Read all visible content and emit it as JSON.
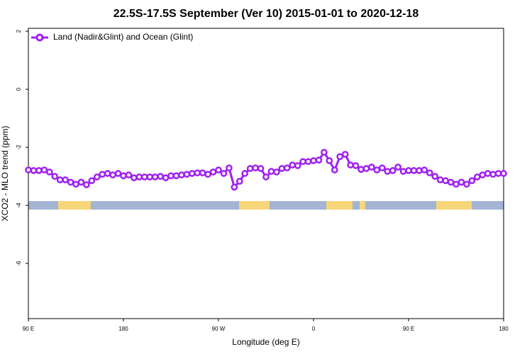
{
  "chart_data": {
    "type": "line",
    "title": "22.5S-17.5S September (Ver 10)   2015-01-01 to 2020-12-18",
    "x_label": "Longitude (deg E)",
    "y_label": "XCO2 - MLO trend (ppm)",
    "x": [
      90,
      95,
      100,
      105,
      110,
      115,
      120,
      125,
      130,
      135,
      140,
      145,
      150,
      155,
      160,
      165,
      170,
      175,
      180,
      185,
      190,
      195,
      200,
      205,
      210,
      215,
      220,
      225,
      230,
      235,
      240,
      245,
      250,
      255,
      260,
      265,
      270,
      275,
      280,
      285,
      290,
      295,
      300,
      305,
      310,
      315,
      320,
      325,
      330,
      335,
      340,
      345,
      350,
      355,
      360,
      365,
      370,
      375,
      380,
      385,
      390,
      395,
      400,
      405,
      410,
      415,
      420,
      425,
      430,
      435,
      440,
      445,
      450,
      455,
      460,
      465,
      470,
      475,
      480,
      485,
      490,
      495,
      500,
      505,
      510,
      515,
      520,
      525,
      530,
      535,
      540
    ],
    "series": [
      {
        "name": "Land (Nadir&Glint) and Ocean (Glint)",
        "color": "#a020f0",
        "values": [
          -2.78,
          -2.8,
          -2.8,
          -2.78,
          -2.85,
          -3.0,
          -3.12,
          -3.12,
          -3.2,
          -3.27,
          -3.2,
          -3.29,
          -3.15,
          -3.02,
          -2.93,
          -2.9,
          -2.95,
          -2.9,
          -2.98,
          -2.95,
          -3.05,
          -3.02,
          -3.02,
          -3.02,
          -3.02,
          -3.0,
          -3.05,
          -2.98,
          -2.98,
          -2.95,
          -2.93,
          -2.9,
          -2.88,
          -2.88,
          -2.93,
          -2.85,
          -2.78,
          -2.9,
          -2.71,
          -3.37,
          -3.17,
          -2.9,
          -2.73,
          -2.71,
          -2.73,
          -3.02,
          -2.83,
          -2.85,
          -2.73,
          -2.71,
          -2.61,
          -2.63,
          -2.49,
          -2.49,
          -2.46,
          -2.44,
          -2.17,
          -2.46,
          -2.78,
          -2.32,
          -2.24,
          -2.61,
          -2.63,
          -2.76,
          -2.73,
          -2.68,
          -2.78,
          -2.71,
          -2.83,
          -2.8,
          -2.68,
          -2.83,
          -2.8,
          -2.8,
          -2.8,
          -2.78,
          -2.88,
          -3.0,
          -3.12,
          -3.15,
          -3.2,
          -3.27,
          -3.2,
          -3.27,
          -3.15,
          -3.02,
          -2.95,
          -2.9,
          -2.93,
          -2.9,
          -2.9
        ]
      }
    ],
    "xlim": [
      90,
      540
    ],
    "xticks": [
      {
        "value": 90,
        "label": "90 E"
      },
      180,
      {
        "value": 270,
        "label": "90 W"
      },
      {
        "value": 360,
        "label": "0"
      },
      {
        "value": 450,
        "label": "90 E"
      },
      {
        "value": 540,
        "label": "180"
      }
    ],
    "ylim": [
      -7.9,
      2.1
    ],
    "yticks": [
      -6,
      -4,
      -2,
      0,
      2
    ],
    "legend": "top-left"
  }
}
